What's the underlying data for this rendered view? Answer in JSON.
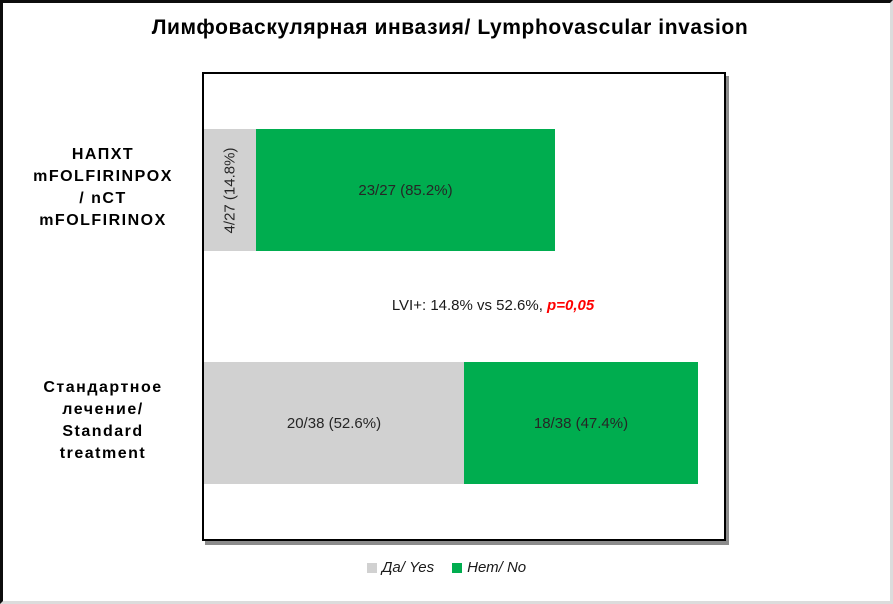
{
  "title": "Лимфоваскулярная инвазия/ Lymphovascular invasion",
  "chart_data": {
    "type": "bar",
    "orientation": "horizontal",
    "stacked": true,
    "grid": false,
    "xlim": [
      0,
      40
    ],
    "categories": [
      "НАПХТ mFOLFIRINPOX / nCT mFOLFIRINOX",
      "Стандартное лечение/ Standard treatment"
    ],
    "category_lines": [
      [
        "НАПХТ",
        "mFOLFIRINPOX",
        "/ nCT",
        "mFOLFIRINOX"
      ],
      [
        "Стандартное",
        "лечение/",
        "Standard",
        "treatment"
      ]
    ],
    "totals": [
      27,
      38
    ],
    "series": [
      {
        "name": "Да/ Yes",
        "color": "#D1D1D1",
        "values": [
          4,
          20
        ],
        "labels": [
          "4/27 (14.8%)",
          "20/38 (52.6%)"
        ]
      },
      {
        "name": "Нет/ No",
        "color": "#00AD4F",
        "values": [
          23,
          18
        ],
        "labels": [
          "23/27 (85.2%)",
          "18/38 (47.4%)"
        ]
      }
    ],
    "legend_position": "bottom",
    "annotation": {
      "text_black": "LVI+: 14.8% vs 52.6%, ",
      "text_red": "p=0,05",
      "red_color": "#FF0000"
    }
  }
}
